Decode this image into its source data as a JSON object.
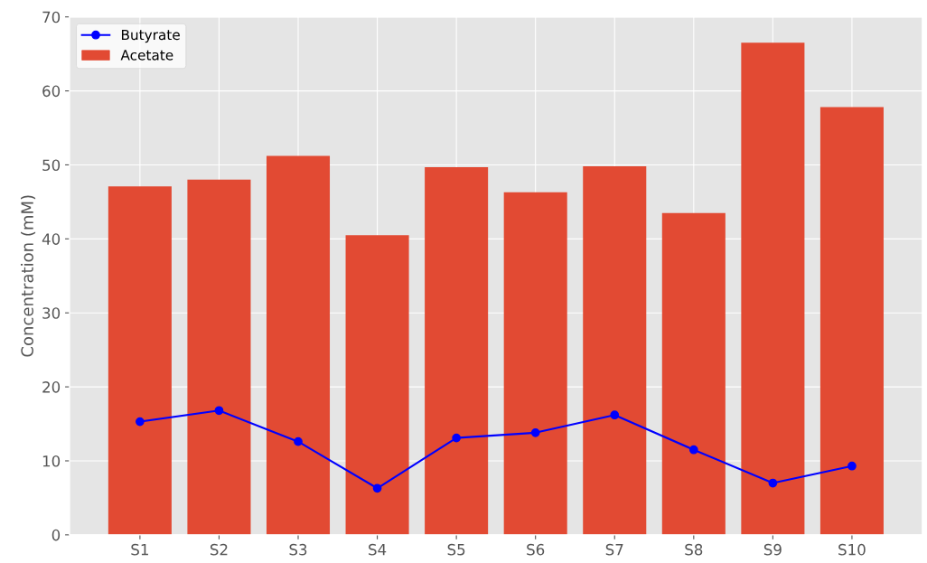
{
  "chart_data": {
    "type": "bar",
    "ylabel": "Concentration (mM)",
    "categories": [
      "S1",
      "S2",
      "S3",
      "S4",
      "S5",
      "S6",
      "S7",
      "S8",
      "S9",
      "S10"
    ],
    "series": [
      {
        "name": "Butyrate",
        "type": "line",
        "color": "#0000ff",
        "marker": "circle",
        "values": [
          15.3,
          16.8,
          12.6,
          6.3,
          13.1,
          13.8,
          16.2,
          11.5,
          7.0,
          9.3
        ]
      },
      {
        "name": "Acetate",
        "color": "#e24a33",
        "values": [
          47.1,
          48.0,
          51.2,
          40.5,
          49.7,
          46.3,
          49.8,
          43.5,
          66.5,
          57.8
        ]
      }
    ],
    "ylim": [
      0,
      70
    ],
    "yticks": [
      0,
      10,
      20,
      30,
      40,
      50,
      60,
      70
    ],
    "grid": true,
    "legend": "top left"
  }
}
